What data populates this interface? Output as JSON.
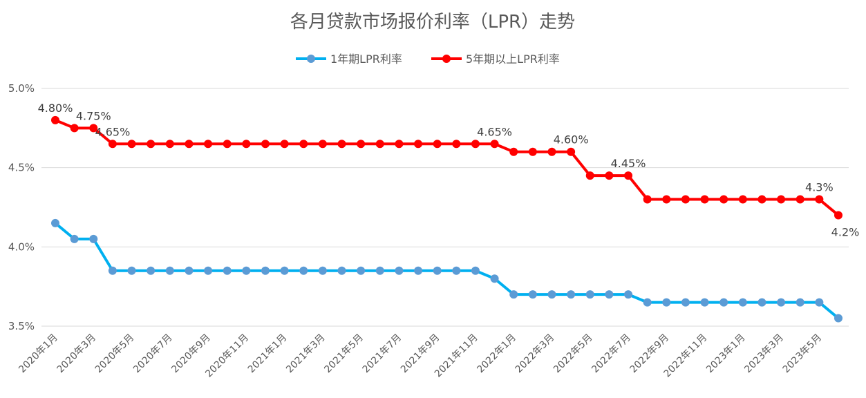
{
  "chart_data": {
    "type": "line",
    "title": "各月贷款市场报价利率（LPR）走势",
    "xlabel": "",
    "ylabel": "",
    "ylim": [
      3.5,
      5.0
    ],
    "yticks": [
      "3.5%",
      "4.0%",
      "4.5%",
      "5.0%"
    ],
    "ytick_values": [
      3.5,
      4.0,
      4.5,
      5.0
    ],
    "grid": true,
    "legend_position": "top",
    "x": [
      "2020年1月",
      "2020年2月",
      "2020年3月",
      "2020年4月",
      "2020年5月",
      "2020年6月",
      "2020年7月",
      "2020年8月",
      "2020年9月",
      "2020年10月",
      "2020年11月",
      "2020年12月",
      "2021年1月",
      "2021年2月",
      "2021年3月",
      "2021年4月",
      "2021年5月",
      "2021年6月",
      "2021年7月",
      "2021年8月",
      "2021年9月",
      "2021年10月",
      "2021年11月",
      "2021年12月",
      "2022年1月",
      "2022年2月",
      "2022年3月",
      "2022年4月",
      "2022年5月",
      "2022年6月",
      "2022年7月",
      "2022年8月",
      "2022年9月",
      "2022年10月",
      "2022年11月",
      "2022年12月",
      "2023年1月",
      "2023年2月",
      "2023年3月",
      "2023年4月",
      "2023年5月",
      "2023年6月"
    ],
    "xtick_labels": [
      "2020年1月",
      "2020年3月",
      "2020年5月",
      "2020年7月",
      "2020年9月",
      "2020年11月",
      "2021年1月",
      "2021年3月",
      "2021年5月",
      "2021年7月",
      "2021年9月",
      "2021年11月",
      "2022年1月",
      "2022年3月",
      "2022年5月",
      "2022年7月",
      "2022年9月",
      "2022年11月",
      "2023年1月",
      "2023年3月",
      "2023年5月"
    ],
    "series": [
      {
        "name": "1年期LPR利率",
        "color": "#00B0F0",
        "marker_color": "#5B9BD5",
        "values": [
          4.15,
          4.05,
          4.05,
          3.85,
          3.85,
          3.85,
          3.85,
          3.85,
          3.85,
          3.85,
          3.85,
          3.85,
          3.85,
          3.85,
          3.85,
          3.85,
          3.85,
          3.85,
          3.85,
          3.85,
          3.85,
          3.85,
          3.85,
          3.8,
          3.7,
          3.7,
          3.7,
          3.7,
          3.7,
          3.7,
          3.7,
          3.65,
          3.65,
          3.65,
          3.65,
          3.65,
          3.65,
          3.65,
          3.65,
          3.65,
          3.65,
          3.55
        ]
      },
      {
        "name": "5年期以上LPR利率",
        "color": "#FF0000",
        "marker_color": "#FF0000",
        "values": [
          4.8,
          4.75,
          4.75,
          4.65,
          4.65,
          4.65,
          4.65,
          4.65,
          4.65,
          4.65,
          4.65,
          4.65,
          4.65,
          4.65,
          4.65,
          4.65,
          4.65,
          4.65,
          4.65,
          4.65,
          4.65,
          4.65,
          4.65,
          4.65,
          4.6,
          4.6,
          4.6,
          4.6,
          4.45,
          4.45,
          4.45,
          4.3,
          4.3,
          4.3,
          4.3,
          4.3,
          4.3,
          4.3,
          4.3,
          4.3,
          4.3,
          4.2
        ]
      }
    ],
    "annotations": [
      {
        "series": 1,
        "index": 0,
        "text": "4.80%"
      },
      {
        "series": 1,
        "index": 2,
        "text": "4.75%"
      },
      {
        "series": 1,
        "index": 3,
        "text": "4.65%"
      },
      {
        "series": 1,
        "index": 23,
        "text": "4.65%"
      },
      {
        "series": 1,
        "index": 27,
        "text": "4.60%"
      },
      {
        "series": 1,
        "index": 30,
        "text": "4.45%"
      },
      {
        "series": 1,
        "index": 40,
        "text": "4.3%"
      },
      {
        "series": 1,
        "index": 41,
        "text": "4.2%"
      }
    ]
  }
}
